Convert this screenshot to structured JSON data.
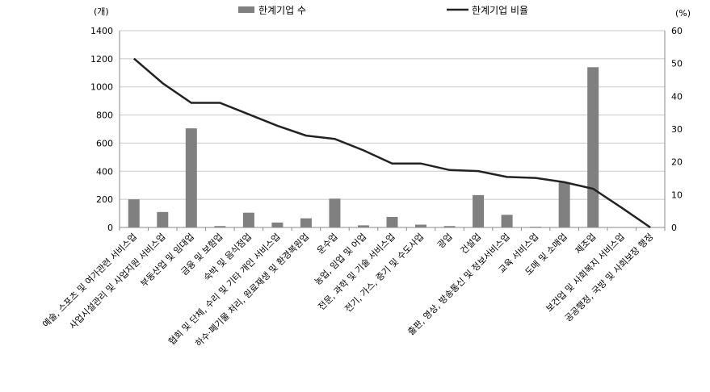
{
  "chart_data": {
    "type": "bar",
    "categories": [
      "예술, 스포츠 및 여가관련 서비스업",
      "사업시설관리 및 사업지원 서비스업",
      "부동산업 및 임대업",
      "금융 및 보험업",
      "숙박 및 음식점업",
      "협회 및 단체, 수리 및 기타 개인 서비스업",
      "하수·폐기물 처리, 원료재생 및 환경복원업",
      "운수업",
      "농업, 임업 및 어업",
      "전문, 과학 및 기술 서비스업",
      "전기, 가스, 증기 및 수도사업",
      "광업",
      "건설업",
      "출판, 영상, 방송통신 및 정보서비스업",
      "교육 서비스업",
      "도매 및 소매업",
      "제조업",
      "보건업 및 사회복지 서비스업",
      "공공행정, 국방 및 사회보장 행정"
    ],
    "series": [
      {
        "name": "한계기업 수",
        "type": "bar",
        "axis": "left",
        "color": "#808080",
        "values": [
          200,
          110,
          705,
          10,
          105,
          35,
          65,
          205,
          15,
          75,
          20,
          10,
          230,
          90,
          5,
          320,
          1140,
          0,
          0
        ]
      },
      {
        "name": "한계기업 비율",
        "type": "line",
        "axis": "right",
        "color": "#222222",
        "values": [
          51.5,
          44,
          38,
          38,
          34.5,
          31,
          28,
          27,
          23.5,
          19.5,
          19.5,
          17.5,
          17.2,
          15.4,
          15.1,
          13.8,
          11.8,
          6,
          0
        ]
      }
    ],
    "y_left": {
      "unit": "(개)",
      "min": 0,
      "max": 1400,
      "ticks": [
        "0",
        "200",
        "400",
        "600",
        "800",
        "1000",
        "1200",
        "1400"
      ]
    },
    "y_right": {
      "unit": "(%)",
      "min": 0,
      "max": 60,
      "ticks": [
        "0",
        "10",
        "20",
        "30",
        "40",
        "50",
        "60"
      ]
    },
    "grid": "horizontal",
    "legend": "top"
  }
}
